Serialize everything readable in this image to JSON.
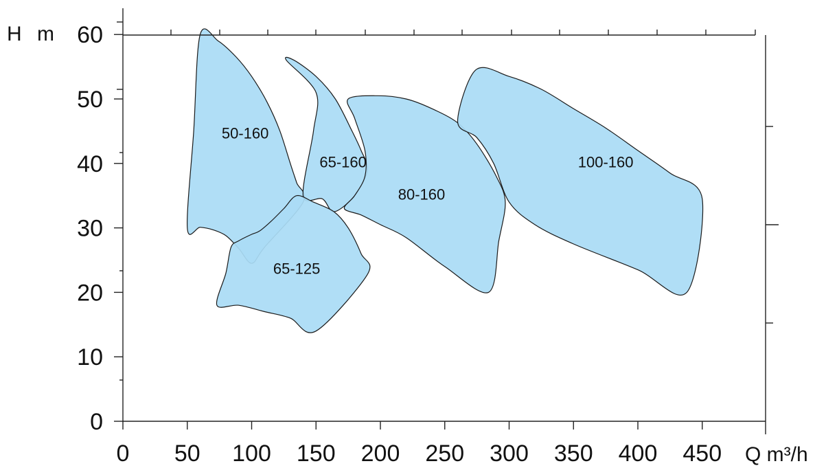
{
  "chart_data": {
    "type": "area",
    "title": "",
    "xlabel": "Q m³/h",
    "ylabel": "H m",
    "xlim": [
      0,
      500
    ],
    "ylim": [
      0,
      60
    ],
    "x_ticks": [
      "0",
      "50",
      "100",
      "150",
      "200",
      "250",
      "300",
      "350",
      "400",
      "450"
    ],
    "y_ticks": [
      "0",
      "10",
      "20",
      "30",
      "40",
      "50",
      "60"
    ],
    "x_tick_values": [
      0,
      50,
      100,
      150,
      200,
      250,
      300,
      350,
      400,
      450
    ],
    "y_tick_values": [
      0,
      10,
      20,
      30,
      40,
      50,
      60
    ],
    "fill_color": "#aadcf5",
    "grid": false,
    "regions": [
      {
        "label": "50-160",
        "label_at": [
          95,
          44.5
        ],
        "points": [
          [
            60,
            60
          ],
          [
            74,
            59
          ],
          [
            88,
            56.5
          ],
          [
            100,
            53.5
          ],
          [
            112,
            49.5
          ],
          [
            122,
            45
          ],
          [
            130,
            40
          ],
          [
            135,
            37
          ],
          [
            140,
            34
          ],
          [
            110,
            27
          ],
          [
            100,
            24.5
          ],
          [
            90,
            26.8
          ],
          [
            80,
            28.8
          ],
          [
            70,
            29.7
          ],
          [
            60,
            30.1
          ],
          [
            50,
            30
          ],
          [
            55,
            45
          ]
        ]
      },
      {
        "label": "65-160",
        "label_at": [
          171,
          40
        ],
        "points": [
          [
            133,
            56
          ],
          [
            150,
            53.5
          ],
          [
            165,
            50
          ],
          [
            178,
            45
          ],
          [
            185,
            42
          ],
          [
            190,
            39
          ],
          [
            180,
            35
          ],
          [
            164,
            32.5
          ],
          [
            155,
            34.5
          ],
          [
            140,
            35
          ],
          [
            148,
            45
          ],
          [
            150,
            51
          ],
          [
            127,
            56
          ]
        ]
      },
      {
        "label": "65-125",
        "label_at": [
          135,
          23.5
        ],
        "points": [
          [
            73,
            18
          ],
          [
            90,
            18
          ],
          [
            110,
            17
          ],
          [
            130,
            16
          ],
          [
            150,
            14
          ],
          [
            190,
            22.8
          ],
          [
            185,
            26
          ],
          [
            175,
            30
          ],
          [
            164,
            32.5
          ],
          [
            148,
            34
          ],
          [
            135,
            35
          ],
          [
            125,
            33
          ],
          [
            115,
            31
          ],
          [
            106,
            29.5
          ],
          [
            100,
            29
          ],
          [
            90,
            28
          ],
          [
            84,
            27
          ],
          [
            80,
            23
          ]
        ]
      },
      {
        "label": "80-160",
        "label_at": [
          232,
          35
        ],
        "points": [
          [
            175,
            50
          ],
          [
            198,
            50.5
          ],
          [
            220,
            50
          ],
          [
            240,
            48.5
          ],
          [
            260,
            46.3
          ],
          [
            275,
            43
          ],
          [
            290,
            38
          ],
          [
            297,
            34
          ],
          [
            292,
            28
          ],
          [
            284,
            20
          ],
          [
            250,
            24
          ],
          [
            220,
            28.5
          ],
          [
            200,
            30.5
          ],
          [
            185,
            32
          ],
          [
            172,
            33
          ],
          [
            180,
            35
          ],
          [
            188,
            38
          ],
          [
            188,
            42
          ],
          [
            180,
            47
          ]
        ]
      },
      {
        "label": "100-160",
        "label_at": [
          375,
          40
        ],
        "points": [
          [
            274,
            54.5
          ],
          [
            300,
            53.5
          ],
          [
            325,
            51.5
          ],
          [
            350,
            48.5
          ],
          [
            375,
            45.5
          ],
          [
            400,
            42
          ],
          [
            425,
            38.5
          ],
          [
            450,
            34.5
          ],
          [
            438,
            20
          ],
          [
            400,
            23.5
          ],
          [
            350,
            27.5
          ],
          [
            320,
            30.5
          ],
          [
            300,
            34
          ],
          [
            288,
            40
          ],
          [
            275,
            44
          ],
          [
            260,
            46.5
          ]
        ]
      }
    ]
  }
}
